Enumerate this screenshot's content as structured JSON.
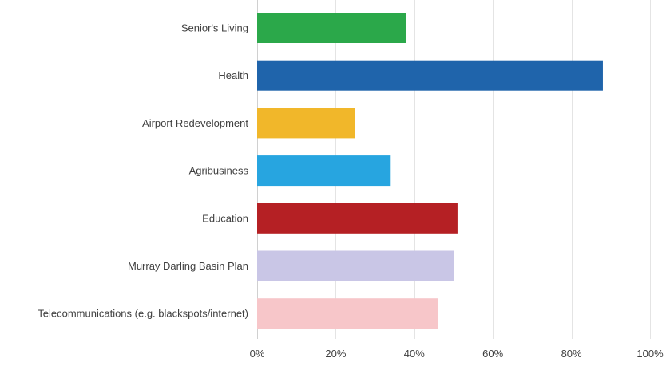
{
  "chart_data": {
    "type": "bar",
    "orientation": "horizontal",
    "categories": [
      "Senior's Living",
      "Health",
      "Airport Redevelopment",
      "Agribusiness",
      "Education",
      "Murray Darling Basin Plan",
      "Telecommunications (e.g. blackspots/internet)"
    ],
    "values": [
      38,
      88,
      25,
      34,
      51,
      50,
      46
    ],
    "colors": [
      "#2ba84a",
      "#1f64ab",
      "#f1b72a",
      "#27a5e0",
      "#b52024",
      "#c9c6e6",
      "#f7c6c9"
    ],
    "xlim": [
      0,
      100
    ],
    "x_ticks": [
      0,
      20,
      40,
      60,
      80,
      100
    ],
    "x_tick_labels": [
      "0%",
      "20%",
      "40%",
      "60%",
      "80%",
      "100%"
    ],
    "grid": true,
    "title": "",
    "xlabel": "",
    "ylabel": ""
  }
}
